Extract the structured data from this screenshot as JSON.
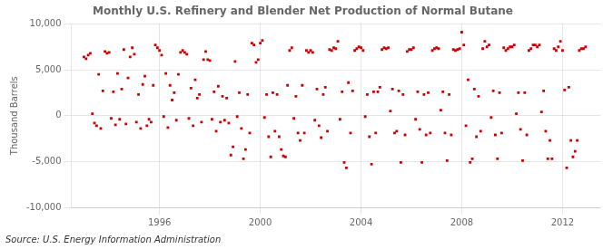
{
  "chart_data": {
    "type": "scatter",
    "title": "Monthly U.S. Refinery and Blender Net Production of Normal Butane",
    "y_label": "Thousand Barrels",
    "annotations": [
      "Source: U.S. Energy Information Administration"
    ],
    "color": "#CC0000",
    "marker": "square",
    "grid": true,
    "xlim": [
      1992.5,
      2013.5
    ],
    "xticks": [
      1996,
      2000,
      2004,
      2008,
      2012
    ],
    "ylim": [
      -10000,
      10000
    ],
    "yticks": [
      {
        "value": -10000,
        "label": "-10,000"
      },
      {
        "value": -5000,
        "label": "-5,000"
      },
      0,
      {
        "value": 5000,
        "label": "5,000"
      },
      {
        "value": 10000,
        "label": "10,000"
      }
    ],
    "x": [
      1993.0,
      1993.083,
      1993.167,
      1993.25,
      1993.333,
      1993.417,
      1993.5,
      1993.583,
      1993.667,
      1993.75,
      1993.833,
      1993.917,
      1994.0,
      1994.083,
      1994.167,
      1994.25,
      1994.333,
      1994.417,
      1994.5,
      1994.583,
      1994.667,
      1994.75,
      1994.833,
      1994.917,
      1995.0,
      1995.083,
      1995.167,
      1995.25,
      1995.333,
      1995.417,
      1995.5,
      1995.583,
      1995.667,
      1995.75,
      1995.833,
      1995.917,
      1996.0,
      1996.083,
      1996.167,
      1996.25,
      1996.333,
      1996.417,
      1996.5,
      1996.583,
      1996.667,
      1996.75,
      1996.833,
      1996.917,
      1997.0,
      1997.083,
      1997.167,
      1997.25,
      1997.333,
      1997.417,
      1997.5,
      1997.583,
      1997.667,
      1997.75,
      1997.833,
      1997.917,
      1998.0,
      1998.083,
      1998.167,
      1998.25,
      1998.333,
      1998.417,
      1998.5,
      1998.583,
      1998.667,
      1998.75,
      1998.833,
      1998.917,
      1999.0,
      1999.083,
      1999.167,
      1999.25,
      1999.333,
      1999.417,
      1999.5,
      1999.583,
      1999.667,
      1999.75,
      1999.833,
      1999.917,
      2000.0,
      2000.083,
      2000.167,
      2000.25,
      2000.333,
      2000.417,
      2000.5,
      2000.583,
      2000.667,
      2000.75,
      2000.833,
      2000.917,
      2001.0,
      2001.083,
      2001.167,
      2001.25,
      2001.333,
      2001.417,
      2001.5,
      2001.583,
      2001.667,
      2001.75,
      2001.833,
      2001.917,
      2002.0,
      2002.083,
      2002.167,
      2002.25,
      2002.333,
      2002.417,
      2002.5,
      2002.583,
      2002.667,
      2002.75,
      2002.833,
      2002.917,
      2003.0,
      2003.083,
      2003.167,
      2003.25,
      2003.333,
      2003.417,
      2003.5,
      2003.583,
      2003.667,
      2003.75,
      2003.833,
      2003.917,
      2004.0,
      2004.083,
      2004.167,
      2004.25,
      2004.333,
      2004.417,
      2004.5,
      2004.583,
      2004.667,
      2004.75,
      2004.833,
      2004.917,
      2005.0,
      2005.083,
      2005.167,
      2005.25,
      2005.333,
      2005.417,
      2005.5,
      2005.583,
      2005.667,
      2005.75,
      2005.833,
      2005.917,
      2006.0,
      2006.083,
      2006.167,
      2006.25,
      2006.333,
      2006.417,
      2006.5,
      2006.583,
      2006.667,
      2006.75,
      2006.833,
      2006.917,
      2007.0,
      2007.083,
      2007.167,
      2007.25,
      2007.333,
      2007.417,
      2007.5,
      2007.583,
      2007.667,
      2007.75,
      2007.833,
      2007.917,
      2008.0,
      2008.083,
      2008.167,
      2008.25,
      2008.333,
      2008.417,
      2008.5,
      2008.583,
      2008.667,
      2008.75,
      2008.833,
      2008.917,
      2009.0,
      2009.083,
      2009.167,
      2009.25,
      2009.333,
      2009.417,
      2009.5,
      2009.583,
      2009.667,
      2009.75,
      2009.833,
      2009.917,
      2010.0,
      2010.083,
      2010.167,
      2010.25,
      2010.333,
      2010.417,
      2010.5,
      2010.583,
      2010.667,
      2010.75,
      2010.833,
      2010.917,
      2011.0,
      2011.083,
      2011.167,
      2011.25,
      2011.333,
      2011.417,
      2011.5,
      2011.583,
      2011.667,
      2011.75,
      2011.833,
      2011.917,
      2012.0,
      2012.083,
      2012.167,
      2012.25,
      2012.333,
      2012.417,
      2012.5,
      2012.583,
      2012.667,
      2012.75,
      2012.833,
      2012.917
    ],
    "values": [
      6400,
      6200,
      6600,
      6800,
      200,
      -800,
      -1100,
      4500,
      -1400,
      2700,
      7000,
      6800,
      6900,
      -300,
      2600,
      -1000,
      4600,
      -400,
      2900,
      7200,
      -900,
      4100,
      6400,
      7400,
      6700,
      -700,
      2300,
      -1400,
      3400,
      4300,
      -1100,
      -400,
      -700,
      3300,
      7700,
      7400,
      7100,
      6600,
      -100,
      4600,
      -1300,
      3300,
      1700,
      2500,
      -500,
      4500,
      6900,
      7100,
      6900,
      6700,
      -300,
      3000,
      -1100,
      3900,
      1900,
      2300,
      -700,
      6100,
      7000,
      6100,
      6000,
      -400,
      2600,
      -1700,
      3200,
      -700,
      2100,
      -500,
      1900,
      -800,
      -4300,
      -3400,
      5900,
      -100,
      2500,
      -1400,
      -4700,
      -3700,
      2300,
      -1900,
      7900,
      7700,
      5800,
      6100,
      7900,
      8200,
      -200,
      2300,
      -2300,
      -4500,
      2500,
      -1700,
      2300,
      -2300,
      -3700,
      -4400,
      -4500,
      3300,
      7100,
      7400,
      -300,
      2100,
      -1900,
      -2700,
      3300,
      -1900,
      7100,
      6900,
      7100,
      6900,
      -500,
      2900,
      -1100,
      -2400,
      2300,
      3100,
      -1700,
      7200,
      7100,
      7400,
      7300,
      8100,
      -400,
      2600,
      -5100,
      -5700,
      3600,
      -1900,
      2700,
      7100,
      7300,
      7500,
      7400,
      7100,
      -100,
      2300,
      -2300,
      -5300,
      2600,
      -1900,
      2600,
      3100,
      7200,
      7400,
      7300,
      7400,
      500,
      2900,
      -1900,
      -1700,
      2700,
      -5100,
      2300,
      -2100,
      7000,
      7200,
      7200,
      7400,
      -400,
      2600,
      -1500,
      -5100,
      2300,
      -2100,
      2500,
      -1900,
      7100,
      7300,
      7400,
      7300,
      600,
      2600,
      -1900,
      -4900,
      2300,
      -2100,
      7200,
      7100,
      7200,
      7300,
      9100,
      7700,
      -1100,
      3900,
      -5100,
      -4700,
      2900,
      -2300,
      2100,
      -1700,
      7300,
      8100,
      7500,
      7700,
      -200,
      2700,
      -2100,
      -4700,
      2500,
      -1900,
      7400,
      7100,
      7300,
      7500,
      7500,
      7700,
      200,
      2500,
      -1500,
      -4900,
      2500,
      -2100,
      7100,
      7300,
      7700,
      7700,
      7500,
      7700,
      400,
      2700,
      -1700,
      -4700,
      -2700,
      -4700,
      7300,
      7100,
      7500,
      8100,
      7100,
      2800,
      -5700,
      3100,
      -2700,
      -4500,
      -3900,
      -2700,
      7100,
      7300,
      7300,
      7500
    ]
  }
}
